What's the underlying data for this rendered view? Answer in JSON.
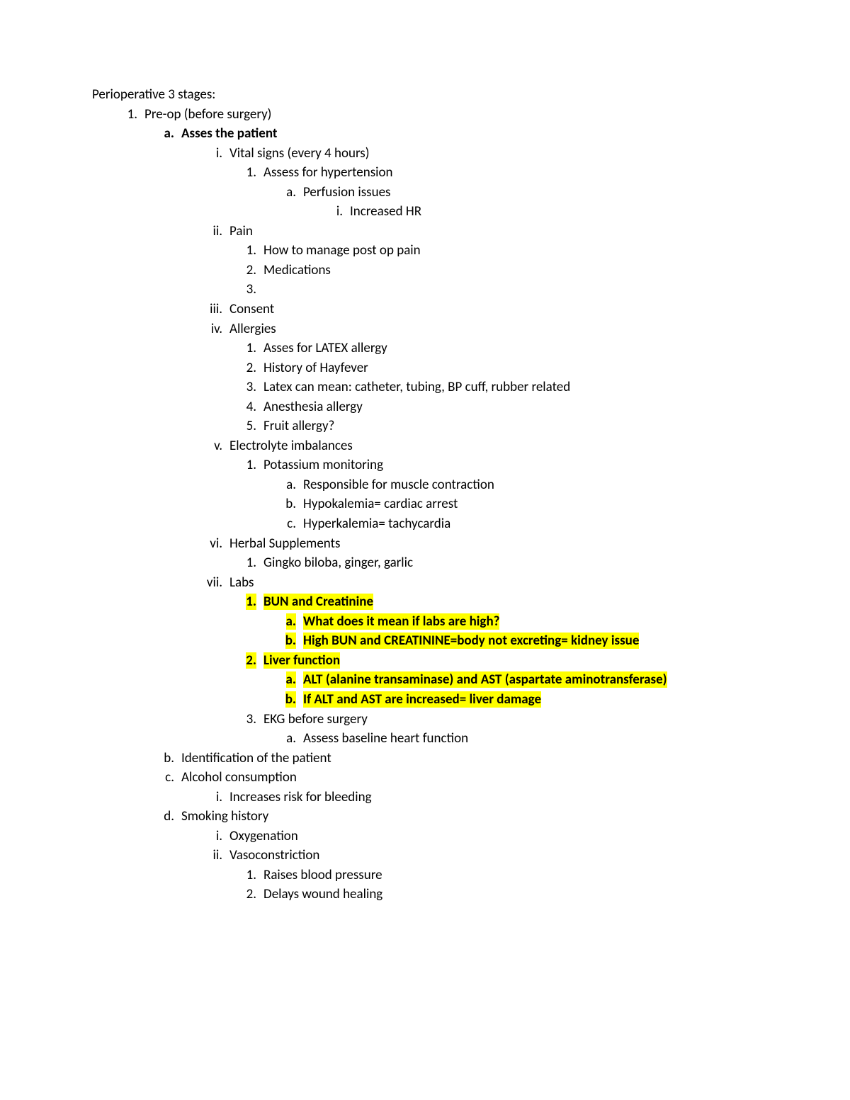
{
  "highlight_color": "#ffff00",
  "text_color": "#000000",
  "font_family": "Calibri",
  "font_size_pt": 11,
  "lines": [
    {
      "indent": 0,
      "marker": "",
      "text": "Perioperative 3 stages:",
      "bold": false,
      "highlight": false
    },
    {
      "indent": 1,
      "marker": "1.",
      "text": "Pre-op (before surgery)",
      "bold": false,
      "highlight": false
    },
    {
      "indent": 2,
      "marker": "a.",
      "text": "Asses the patient",
      "bold": true,
      "highlight": false
    },
    {
      "indent": 3,
      "marker": "i.",
      "text": "Vital signs (every 4 hours)",
      "bold": false,
      "highlight": false
    },
    {
      "indent": 4,
      "marker": "1.",
      "text": "Assess for hypertension",
      "bold": false,
      "highlight": false
    },
    {
      "indent": 5,
      "marker": "a.",
      "text": "Perfusion issues",
      "bold": false,
      "highlight": false
    },
    {
      "indent": 6,
      "marker": "i.",
      "text": "Increased HR",
      "bold": false,
      "highlight": false
    },
    {
      "indent": 3,
      "marker": "ii.",
      "text": "Pain",
      "bold": false,
      "highlight": false
    },
    {
      "indent": 4,
      "marker": "1.",
      "text": "How to manage post op pain",
      "bold": false,
      "highlight": false
    },
    {
      "indent": 4,
      "marker": "2.",
      "text": "Medications",
      "bold": false,
      "highlight": false
    },
    {
      "indent": 4,
      "marker": "3.",
      "text": "",
      "bold": false,
      "highlight": false
    },
    {
      "indent": 3,
      "marker": "iii.",
      "text": "Consent",
      "bold": false,
      "highlight": false
    },
    {
      "indent": 3,
      "marker": "iv.",
      "text": "Allergies",
      "bold": false,
      "highlight": false
    },
    {
      "indent": 4,
      "marker": "1.",
      "text": "Asses for LATEX allergy",
      "bold": false,
      "highlight": false
    },
    {
      "indent": 4,
      "marker": "2.",
      "text": "History of Hayfever",
      "bold": false,
      "highlight": false
    },
    {
      "indent": 4,
      "marker": "3.",
      "text": "Latex can mean: catheter, tubing, BP cuff, rubber related",
      "bold": false,
      "highlight": false
    },
    {
      "indent": 4,
      "marker": "4.",
      "text": "Anesthesia allergy",
      "bold": false,
      "highlight": false
    },
    {
      "indent": 4,
      "marker": "5.",
      "text": "Fruit allergy?",
      "bold": false,
      "highlight": false
    },
    {
      "indent": 3,
      "marker": "v.",
      "text": "Electrolyte imbalances",
      "bold": false,
      "highlight": false
    },
    {
      "indent": 4,
      "marker": "1.",
      "text": "Potassium monitoring",
      "bold": false,
      "highlight": false
    },
    {
      "indent": 5,
      "marker": "a.",
      "text": "Responsible for muscle contraction",
      "bold": false,
      "highlight": false
    },
    {
      "indent": 5,
      "marker": "b.",
      "text": "Hypokalemia= cardiac arrest",
      "bold": false,
      "highlight": false
    },
    {
      "indent": 5,
      "marker": "c.",
      "text": "Hyperkalemia= tachycardia",
      "bold": false,
      "highlight": false
    },
    {
      "indent": 3,
      "marker": "vi.",
      "text": "Herbal Supplements",
      "bold": false,
      "highlight": false
    },
    {
      "indent": 4,
      "marker": "1.",
      "text": "Gingko biloba, ginger, garlic",
      "bold": false,
      "highlight": false
    },
    {
      "indent": 3,
      "marker": "vii.",
      "text": "Labs",
      "bold": false,
      "highlight": false
    },
    {
      "indent": 4,
      "marker": "1.",
      "text": "BUN and Creatinine",
      "bold": true,
      "highlight": true
    },
    {
      "indent": 5,
      "marker": "a.",
      "text": "What does it mean if labs are high?",
      "bold": true,
      "highlight": true
    },
    {
      "indent": 5,
      "marker": "b.",
      "text": "High BUN and CREATININE=body not excreting= kidney issue",
      "bold": true,
      "highlight": true
    },
    {
      "indent": 4,
      "marker": "2.",
      "text": "Liver function",
      "bold": true,
      "highlight": true
    },
    {
      "indent": 5,
      "marker": "a.",
      "text": "ALT (alanine transaminase) and AST (aspartate aminotransferase)",
      "bold": true,
      "highlight": true
    },
    {
      "indent": 5,
      "marker": "b.",
      "text": "If ALT and AST are increased= liver damage",
      "bold": true,
      "highlight": true
    },
    {
      "indent": 4,
      "marker": "3.",
      "text": "EKG before surgery",
      "bold": false,
      "highlight": false
    },
    {
      "indent": 5,
      "marker": "a.",
      "text": "Assess baseline heart function",
      "bold": false,
      "highlight": false
    },
    {
      "indent": 2,
      "marker": "b.",
      "text": "Identification of the patient",
      "bold": false,
      "highlight": false
    },
    {
      "indent": 2,
      "marker": "c.",
      "text": "Alcohol consumption",
      "bold": false,
      "highlight": false
    },
    {
      "indent": 3,
      "marker": "i.",
      "text": "Increases risk for bleeding",
      "bold": false,
      "highlight": false
    },
    {
      "indent": 2,
      "marker": "d.",
      "text": "Smoking history",
      "bold": false,
      "highlight": false
    },
    {
      "indent": 3,
      "marker": "i.",
      "text": "Oxygenation",
      "bold": false,
      "highlight": false
    },
    {
      "indent": 3,
      "marker": "ii.",
      "text": "Vasoconstriction",
      "bold": false,
      "highlight": false
    },
    {
      "indent": 4,
      "marker": "1.",
      "text": "Raises blood pressure",
      "bold": false,
      "highlight": false
    },
    {
      "indent": 4,
      "marker": "2.",
      "text": "Delays wound healing",
      "bold": false,
      "highlight": false
    }
  ]
}
